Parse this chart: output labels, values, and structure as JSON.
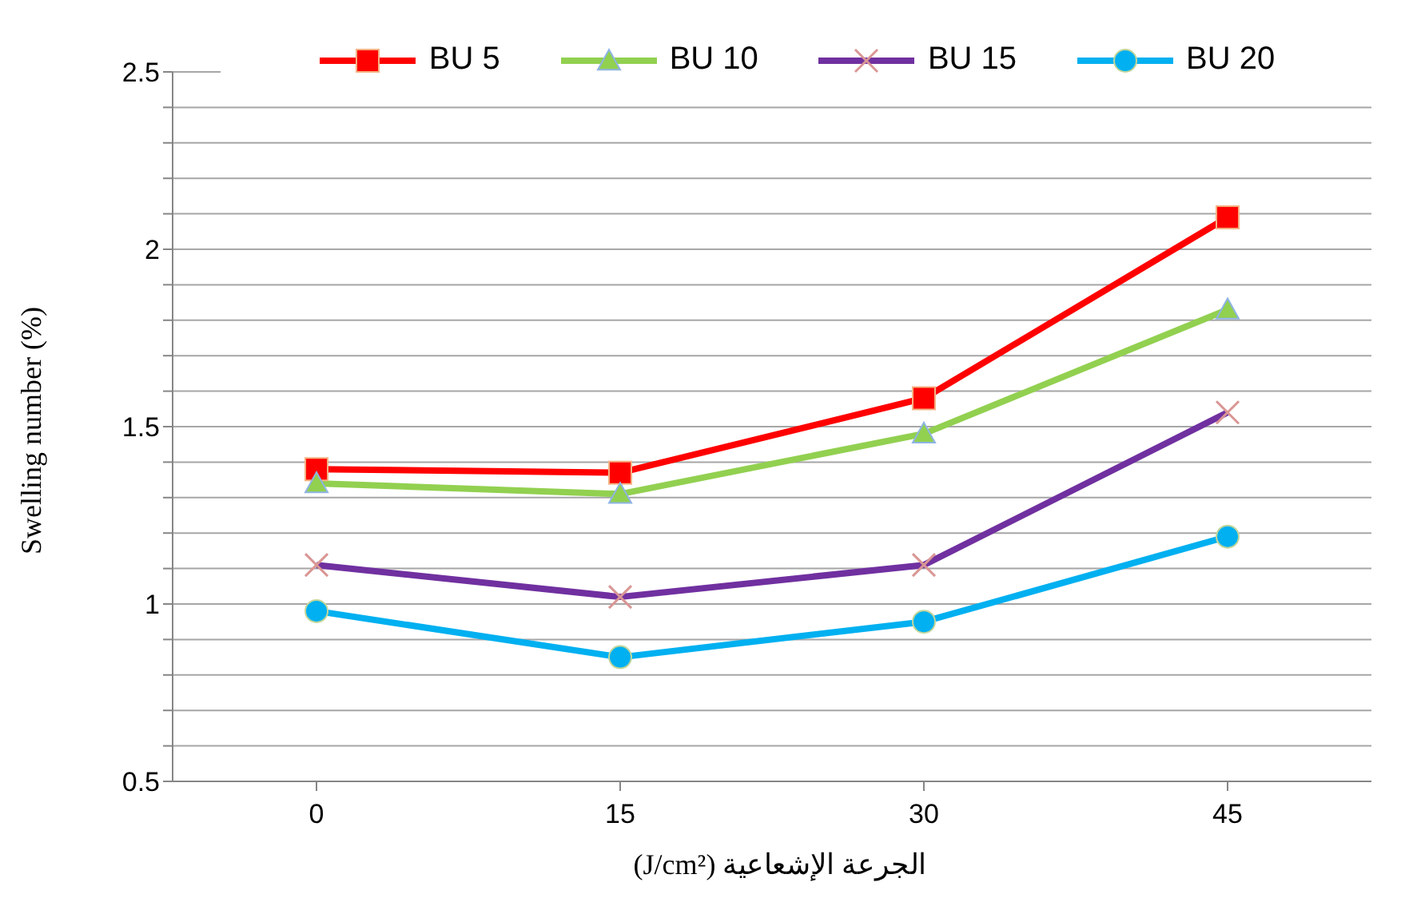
{
  "chart_data": {
    "type": "line",
    "xlabel": "الجرعة الإشعاعية (J/cm²)",
    "ylabel": "Swelling number (%)",
    "categories": [
      "0",
      "15",
      "30",
      "45"
    ],
    "series": [
      {
        "name": "BU 5",
        "color": "#ff0000",
        "marker": "square",
        "values": [
          1.38,
          1.37,
          1.58,
          2.09
        ]
      },
      {
        "name": "BU 10",
        "color": "#92d050",
        "marker": "triangle",
        "values": [
          1.34,
          1.31,
          1.48,
          1.83
        ]
      },
      {
        "name": "BU 15",
        "color": "#7030a0",
        "marker": "cross",
        "values": [
          1.11,
          1.02,
          1.11,
          1.54
        ]
      },
      {
        "name": "BU 20",
        "color": "#00b0f0",
        "marker": "circle",
        "values": [
          0.98,
          0.85,
          0.95,
          1.19
        ]
      }
    ],
    "ylim": [
      0.5,
      2.5
    ],
    "yticks": [
      0.5,
      {
        "value": 0.6,
        "label": null
      },
      {
        "value": 0.7,
        "label": null
      },
      {
        "value": 0.8,
        "label": null
      },
      {
        "value": 0.9,
        "label": null
      },
      1,
      {
        "value": 1.1,
        "label": null
      },
      {
        "value": 1.2,
        "label": null
      },
      {
        "value": 1.3,
        "label": null
      },
      {
        "value": 1.4,
        "label": null
      },
      1.5,
      {
        "value": 1.6,
        "label": null
      },
      {
        "value": 1.7,
        "label": null
      },
      {
        "value": 1.8,
        "label": null
      },
      {
        "value": 1.9,
        "label": null
      },
      2,
      {
        "value": 2.1,
        "label": null
      },
      {
        "value": 2.2,
        "label": null
      },
      {
        "value": 2.3,
        "label": null
      },
      {
        "value": 2.4,
        "label": null
      },
      2.5
    ],
    "grid": "y",
    "legend": "top",
    "line_style": "solid"
  }
}
